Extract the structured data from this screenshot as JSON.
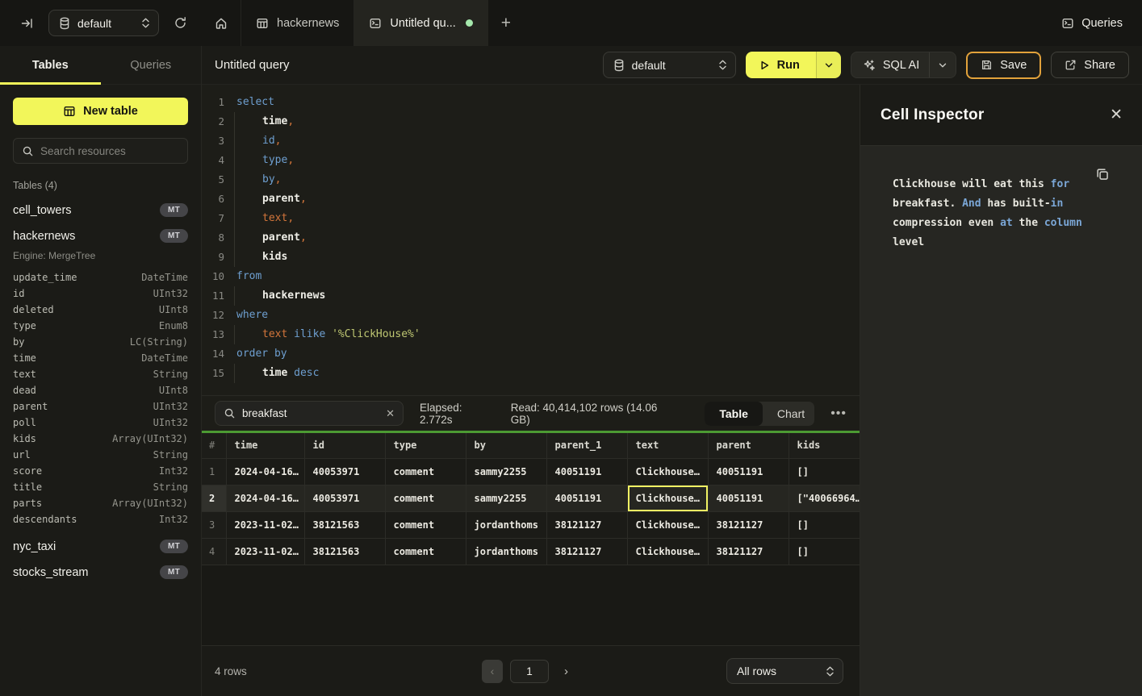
{
  "topbar": {
    "database_selector": "default",
    "tabs": {
      "hackernews": "hackernews",
      "untitled": "Untitled qu...",
      "new_tab": "+"
    },
    "queries_button": "Queries"
  },
  "sidebar": {
    "tabs": {
      "tables": "Tables",
      "queries": "Queries"
    },
    "new_table_button": "New table",
    "search_placeholder": "Search resources",
    "section_header": "Tables (4)",
    "tables": [
      {
        "name": "cell_towers",
        "badge": "MT"
      },
      {
        "name": "hackernews",
        "badge": "MT",
        "engine": "Engine: MergeTree",
        "columns": [
          [
            "update_time",
            "DateTime"
          ],
          [
            "id",
            "UInt32"
          ],
          [
            "deleted",
            "UInt8"
          ],
          [
            "type",
            "Enum8"
          ],
          [
            "by",
            "LC(String)"
          ],
          [
            "time",
            "DateTime"
          ],
          [
            "text",
            "String"
          ],
          [
            "dead",
            "UInt8"
          ],
          [
            "parent",
            "UInt32"
          ],
          [
            "poll",
            "UInt32"
          ],
          [
            "kids",
            "Array(UInt32)"
          ],
          [
            "url",
            "String"
          ],
          [
            "score",
            "Int32"
          ],
          [
            "title",
            "String"
          ],
          [
            "parts",
            "Array(UInt32)"
          ],
          [
            "descendants",
            "Int32"
          ]
        ]
      },
      {
        "name": "nyc_taxi",
        "badge": "MT"
      },
      {
        "name": "stocks_stream",
        "badge": "MT"
      }
    ]
  },
  "query_toolbar": {
    "title": "Untitled query",
    "database_selector": "default",
    "run_button": "Run",
    "sql_ai_button": "SQL AI",
    "save_button": "Save",
    "share_button": "Share"
  },
  "editor": {
    "lines": [
      {
        "n": 1,
        "indent": false,
        "tokens": [
          {
            "t": "select",
            "c": "kw"
          }
        ]
      },
      {
        "n": 2,
        "indent": true,
        "tokens": [
          {
            "t": "time",
            "c": "id"
          },
          {
            "t": ",",
            "c": "or"
          }
        ]
      },
      {
        "n": 3,
        "indent": true,
        "tokens": [
          {
            "t": "id",
            "c": "kw"
          },
          {
            "t": ",",
            "c": "or"
          }
        ]
      },
      {
        "n": 4,
        "indent": true,
        "tokens": [
          {
            "t": "type",
            "c": "kw"
          },
          {
            "t": ",",
            "c": "or"
          }
        ]
      },
      {
        "n": 5,
        "indent": true,
        "tokens": [
          {
            "t": "by",
            "c": "kw"
          },
          {
            "t": ",",
            "c": "or"
          }
        ]
      },
      {
        "n": 6,
        "indent": true,
        "tokens": [
          {
            "t": "parent",
            "c": "id"
          },
          {
            "t": ",",
            "c": "or"
          }
        ]
      },
      {
        "n": 7,
        "indent": true,
        "tokens": [
          {
            "t": "text",
            "c": "or"
          },
          {
            "t": ",",
            "c": "or"
          }
        ]
      },
      {
        "n": 8,
        "indent": true,
        "tokens": [
          {
            "t": "parent",
            "c": "id"
          },
          {
            "t": ",",
            "c": "or"
          }
        ]
      },
      {
        "n": 9,
        "indent": true,
        "tokens": [
          {
            "t": "kids",
            "c": "id"
          }
        ]
      },
      {
        "n": 10,
        "indent": false,
        "tokens": [
          {
            "t": "from",
            "c": "kw"
          }
        ]
      },
      {
        "n": 11,
        "indent": true,
        "tokens": [
          {
            "t": "hackernews",
            "c": "id"
          }
        ]
      },
      {
        "n": 12,
        "indent": false,
        "tokens": [
          {
            "t": "where",
            "c": "kw"
          }
        ]
      },
      {
        "n": 13,
        "indent": true,
        "tokens": [
          {
            "t": "text ",
            "c": "or"
          },
          {
            "t": "ilike ",
            "c": "kw"
          },
          {
            "t": "'%ClickHouse%'",
            "c": "str"
          }
        ]
      },
      {
        "n": 14,
        "indent": false,
        "tokens": [
          {
            "t": "order by",
            "c": "kw"
          }
        ]
      },
      {
        "n": 15,
        "indent": true,
        "tokens": [
          {
            "t": "time ",
            "c": "id"
          },
          {
            "t": "desc",
            "c": "kw"
          }
        ]
      }
    ]
  },
  "results": {
    "search_value": "breakfast",
    "elapsed": "Elapsed: 2.772s",
    "read_stats": "Read: 40,414,102 rows (14.06 GB)",
    "view_table": "Table",
    "view_chart": "Chart",
    "columns": [
      "#",
      "time",
      "id",
      "type",
      "by",
      "parent_1",
      "text",
      "parent",
      "kids"
    ],
    "rows": [
      [
        "1",
        "2024-04-16…",
        "40053971",
        "comment",
        "sammy2255",
        "40051191",
        "Clickhouse…",
        "40051191",
        "[]"
      ],
      [
        "2",
        "2024-04-16…",
        "40053971",
        "comment",
        "sammy2255",
        "40051191",
        "Clickhouse…",
        "40051191",
        "[\"40066964…"
      ],
      [
        "3",
        "2023-11-02…",
        "38121563",
        "comment",
        "jordanthoms",
        "38121127",
        "Clickhouse…",
        "38121127",
        "[]"
      ],
      [
        "4",
        "2023-11-02…",
        "38121563",
        "comment",
        "jordanthoms",
        "38121127",
        "Clickhouse…",
        "38121127",
        "[]"
      ]
    ],
    "selected_cell": {
      "row_index": 1,
      "col_index": 6
    },
    "footer": {
      "row_count": "4 rows",
      "page": "1",
      "page_size": "All rows"
    }
  },
  "inspector": {
    "title": "Cell Inspector",
    "content_lines": [
      [
        {
          "t": "Clickhouse will eat this ",
          "c": "p"
        },
        {
          "t": "for",
          "c": "k"
        }
      ],
      [
        {
          "t": "breakfast. ",
          "c": "p"
        },
        {
          "t": "And",
          "c": "k"
        },
        {
          "t": " has built-",
          "c": "p"
        },
        {
          "t": "in",
          "c": "k"
        }
      ],
      [
        {
          "t": "compression even ",
          "c": "p"
        },
        {
          "t": "at",
          "c": "k"
        },
        {
          "t": " the ",
          "c": "p"
        },
        {
          "t": "column",
          "c": "k"
        },
        {
          "t": " level",
          "c": "p"
        }
      ]
    ]
  },
  "colors": {
    "accent_yellow": "#f2f65a",
    "save_border": "#e2a23b",
    "results_top_border": "#4c9a33",
    "tab_dirty_dot": "#a5e8ac",
    "keyword_blue": "#6e9fd0",
    "string_green": "#bfc772",
    "orange": "#d4763b",
    "selected_cell_border": "#f0f263"
  }
}
